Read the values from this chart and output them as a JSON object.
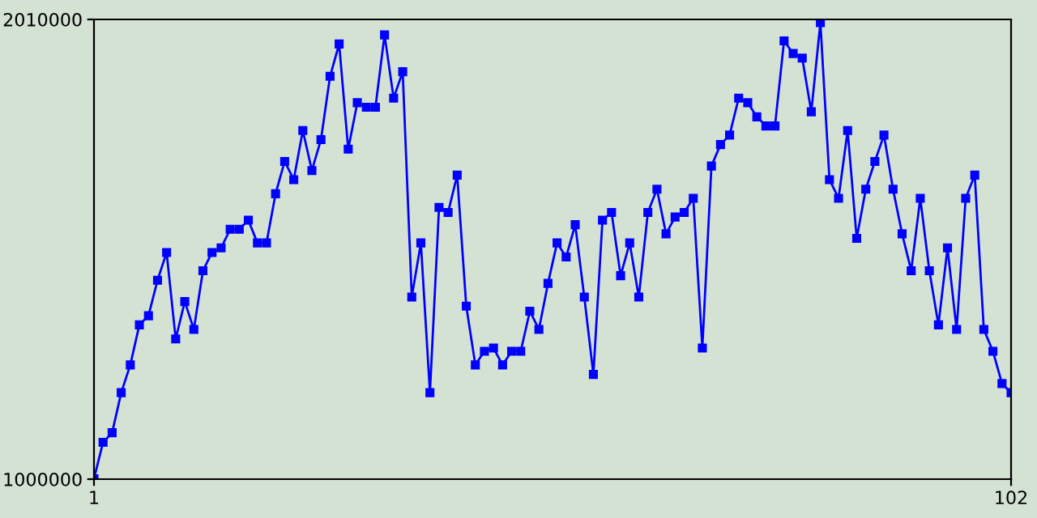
{
  "chart_data": {
    "type": "line",
    "x": [
      1,
      2,
      3,
      4,
      5,
      6,
      7,
      8,
      9,
      10,
      11,
      12,
      13,
      14,
      15,
      16,
      17,
      18,
      19,
      20,
      21,
      22,
      23,
      24,
      25,
      26,
      27,
      28,
      29,
      30,
      31,
      32,
      33,
      34,
      35,
      36,
      37,
      38,
      39,
      40,
      41,
      42,
      43,
      44,
      45,
      46,
      47,
      48,
      49,
      50,
      51,
      52,
      53,
      54,
      55,
      56,
      57,
      58,
      59,
      60,
      61,
      62,
      63,
      64,
      65,
      66,
      67,
      68,
      69,
      70,
      71,
      72,
      73,
      74,
      75,
      76,
      77,
      78,
      79,
      80,
      81,
      82,
      83,
      84,
      85,
      86,
      87,
      88,
      89,
      90,
      91,
      92,
      93,
      94,
      95,
      96,
      97,
      98,
      99,
      100,
      101,
      102
    ],
    "series": [
      {
        "color": "#0000ff",
        "values": [
          1001000,
          1081000,
          1102000,
          1190000,
          1251000,
          1339000,
          1359000,
          1437000,
          1498000,
          1308000,
          1390000,
          1329000,
          1458000,
          1498000,
          1508000,
          1549000,
          1549000,
          1569000,
          1519000,
          1519000,
          1627000,
          1698000,
          1658000,
          1766000,
          1678000,
          1746000,
          1885000,
          1956000,
          1725000,
          1827000,
          1817000,
          1817000,
          1976000,
          1837000,
          1895000,
          1400000,
          1519000,
          1190000,
          1597000,
          1586000,
          1668000,
          1380000,
          1251000,
          1281000,
          1288000,
          1251000,
          1281000,
          1281000,
          1369000,
          1329000,
          1430000,
          1519000,
          1488000,
          1559000,
          1400000,
          1230000,
          1569000,
          1586000,
          1447000,
          1519000,
          1400000,
          1586000,
          1637000,
          1539000,
          1576000,
          1586000,
          1617000,
          1288000,
          1688000,
          1735000,
          1756000,
          1837000,
          1827000,
          1796000,
          1776000,
          1776000,
          1963000,
          1935000,
          1925000,
          1807000,
          2003000,
          1658000,
          1617000,
          1766000,
          1529000,
          1637000,
          1698000,
          1756000,
          1637000,
          1539000,
          1458000,
          1617000,
          1458000,
          1339000,
          1508000,
          1329000,
          1617000,
          1668000,
          1329000,
          1281000,
          1210000,
          1190000
        ]
      }
    ],
    "xlim": [
      1,
      102
    ],
    "xticks": [
      1,
      102
    ],
    "ylim": [
      1000000,
      2010000
    ],
    "yticks": [
      1000000,
      2010000
    ],
    "marker": "square",
    "line_style": "solid"
  }
}
